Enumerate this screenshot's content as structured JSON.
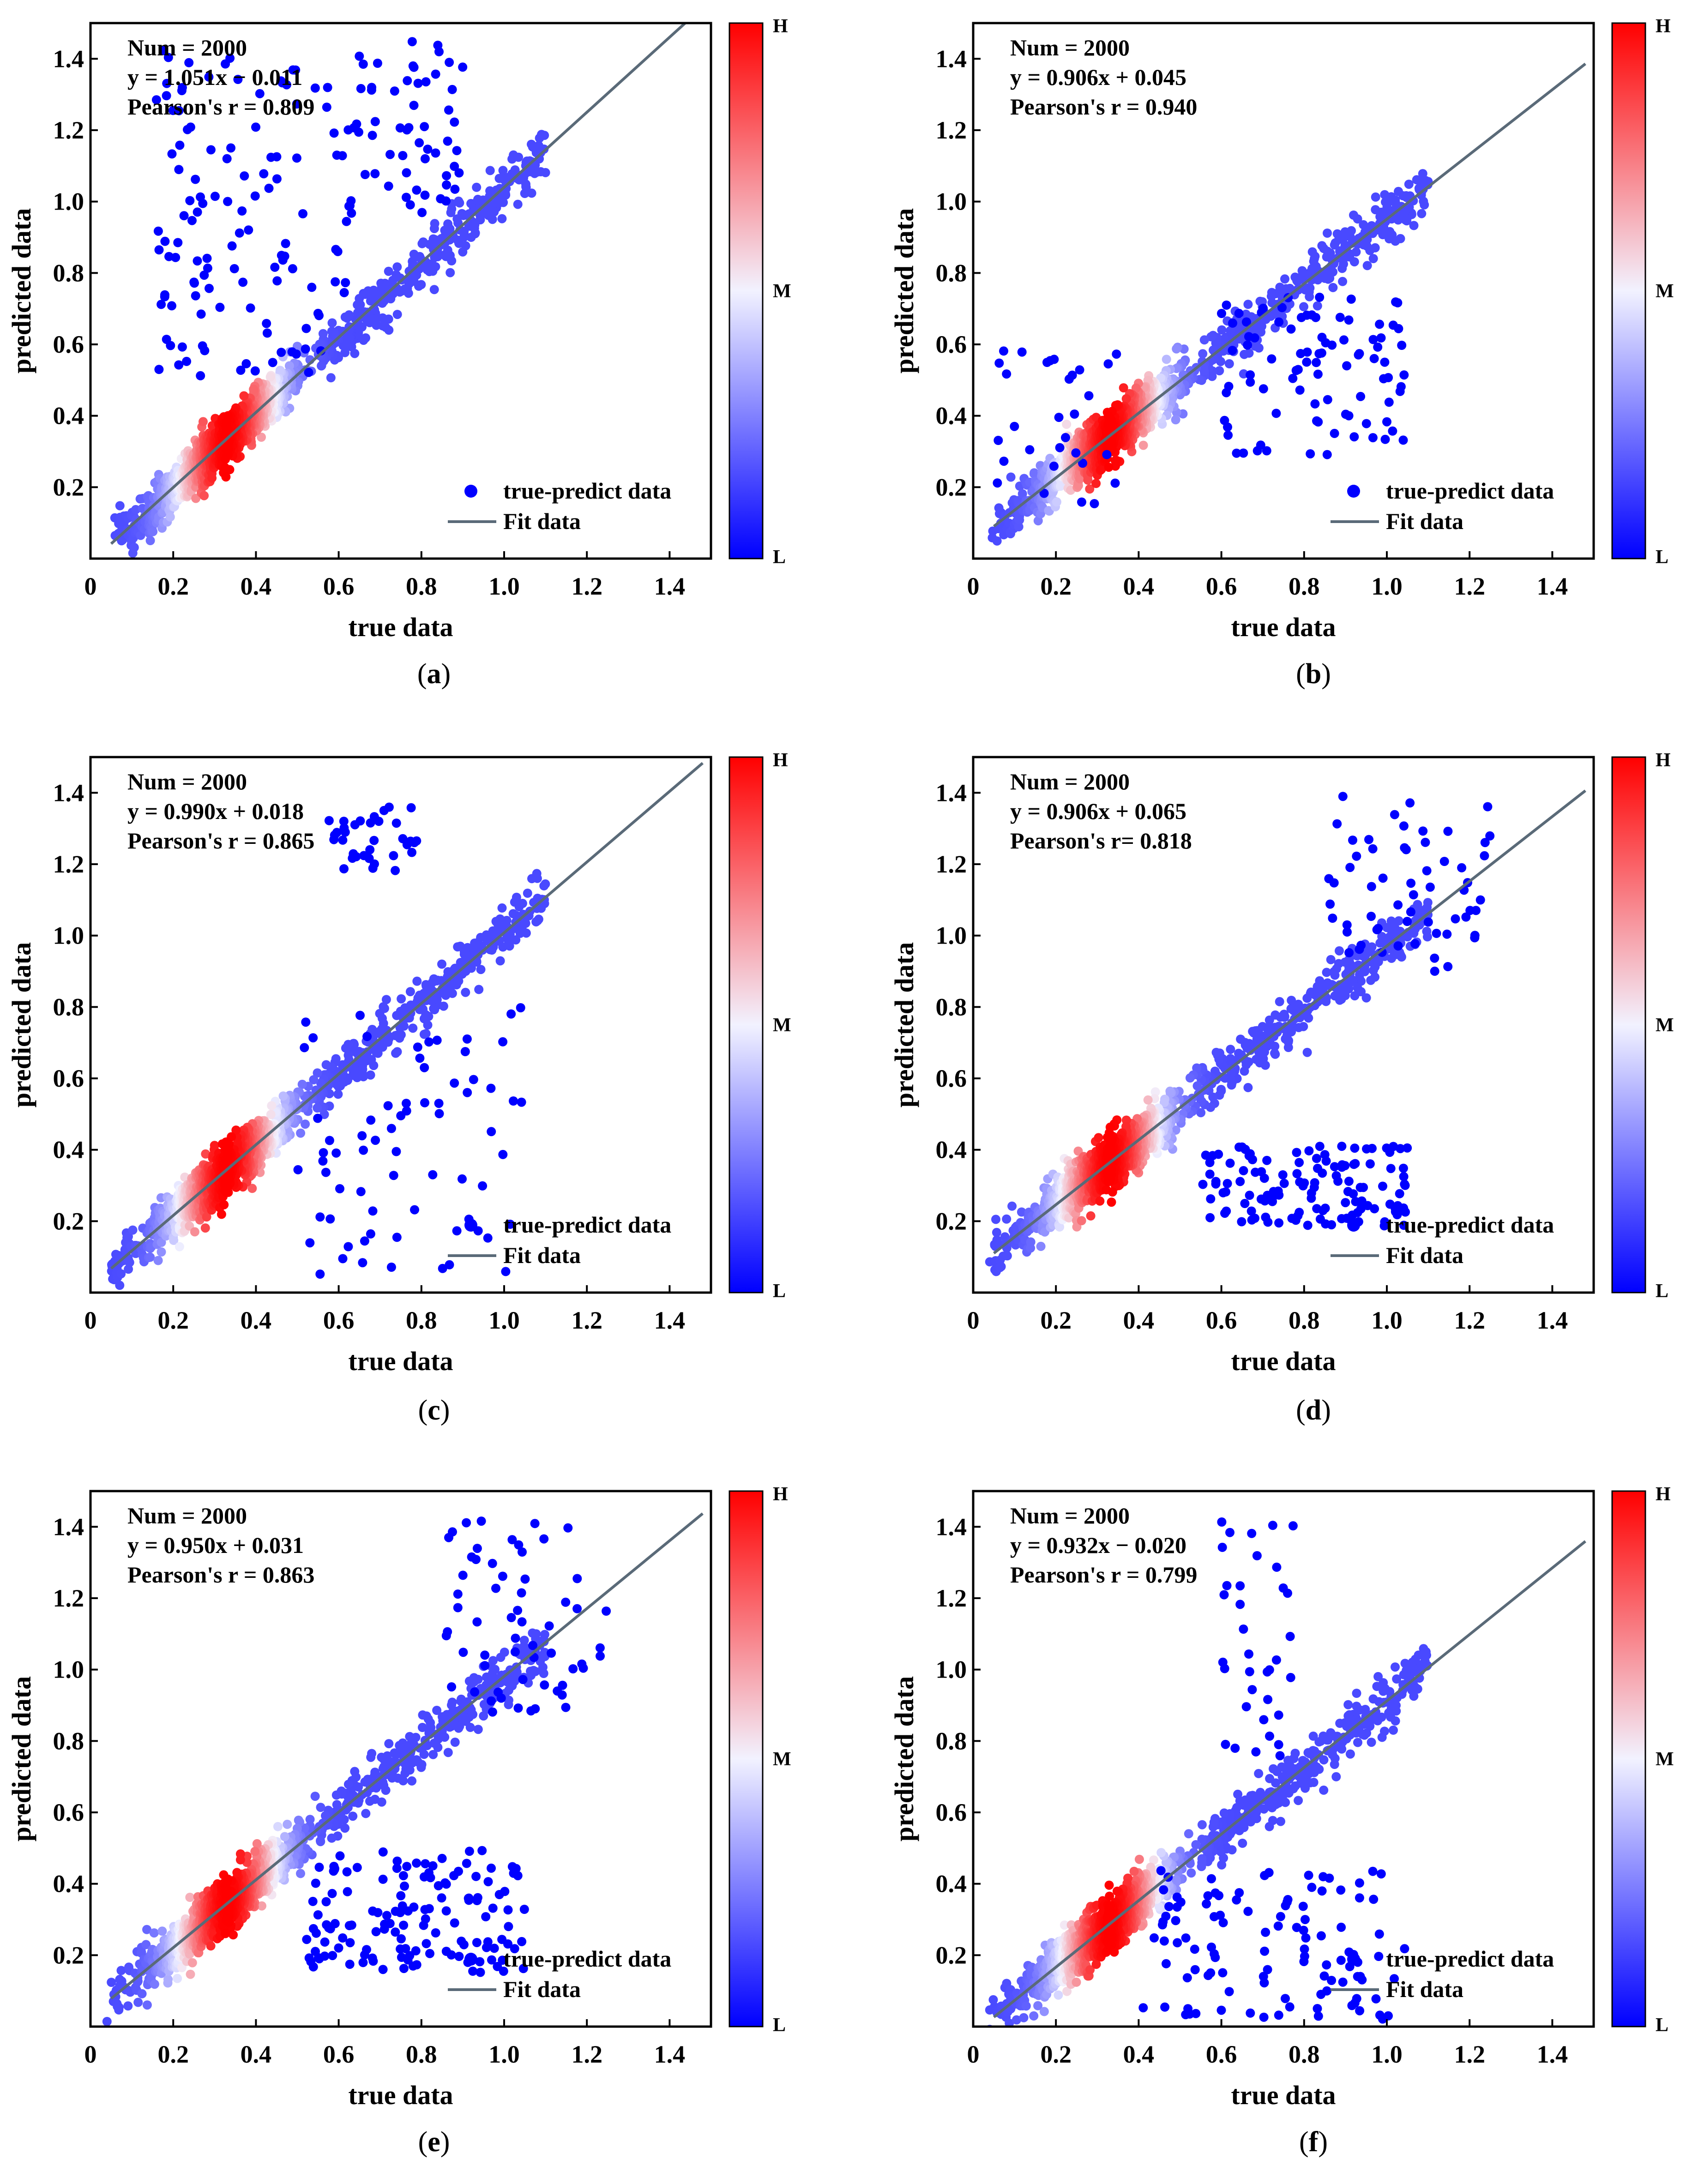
{
  "figure": {
    "colors": {
      "high": "#ff0000",
      "mid": "#f2f2ff",
      "low": "#0000ff",
      "fit": "#5a6a78"
    },
    "legend": {
      "points": "true-predict data",
      "fit": "Fit data"
    },
    "colorbar": {
      "high": "H",
      "mid": "M",
      "low": "L"
    }
  },
  "chart_data": [
    {
      "type": "scatter",
      "panel": "a",
      "caption_letter": "a",
      "xlabel": "true data",
      "ylabel": "predicted data",
      "xlim": [
        0,
        1.5
      ],
      "ylim": [
        0,
        1.5
      ],
      "xticks": [
        "0",
        "0.2",
        "0.4",
        "0.6",
        "0.8",
        "1.0",
        "1.2",
        "1.4"
      ],
      "yticks": [
        "0.2",
        "0.4",
        "0.6",
        "0.8",
        "1.0",
        "1.2",
        "1.4"
      ],
      "stats": {
        "num": "Num = 2000",
        "equation": "y = 1.051x − 0.011",
        "pearson": "Pearson's r = 0.809"
      },
      "fit": {
        "slope": 1.051,
        "intercept": -0.011,
        "x": [
          0.05,
          1.48
        ]
      },
      "num_points": 2000,
      "outlier_clusters": [
        {
          "x": [
            0.15,
            0.62
          ],
          "y": [
            0.5,
            1.45
          ],
          "n": 120
        },
        {
          "x": [
            0.62,
            0.9
          ],
          "y": [
            0.95,
            1.45
          ],
          "n": 60
        }
      ]
    },
    {
      "type": "scatter",
      "panel": "b",
      "caption_letter": "b",
      "xlabel": "true data",
      "ylabel": "predicted data",
      "xlim": [
        0,
        1.5
      ],
      "ylim": [
        0,
        1.5
      ],
      "xticks": [
        "0",
        "0.2",
        "0.4",
        "0.6",
        "0.8",
        "1.0",
        "1.2",
        "1.4"
      ],
      "yticks": [
        "0.2",
        "0.4",
        "0.6",
        "0.8",
        "1.0",
        "1.2",
        "1.4"
      ],
      "stats": {
        "num": "Num = 2000",
        "equation": "y = 0.906x + 0.045",
        "pearson": "Pearson's r = 0.940"
      },
      "fit": {
        "slope": 0.906,
        "intercept": 0.045,
        "x": [
          0.05,
          1.48
        ]
      },
      "num_points": 2000,
      "outlier_clusters": [
        {
          "x": [
            0.6,
            1.05
          ],
          "y": [
            0.28,
            0.75
          ],
          "n": 90
        },
        {
          "x": [
            0.05,
            0.35
          ],
          "y": [
            0.1,
            0.6
          ],
          "n": 30
        }
      ]
    },
    {
      "type": "scatter",
      "panel": "c",
      "caption_letter": "c",
      "xlabel": "true data",
      "ylabel": "predicted data",
      "xlim": [
        0,
        1.5
      ],
      "ylim": [
        0,
        1.5
      ],
      "xticks": [
        "0",
        "0.2",
        "0.4",
        "0.6",
        "0.8",
        "1.0",
        "1.2",
        "1.4"
      ],
      "yticks": [
        "0.2",
        "0.4",
        "0.6",
        "0.8",
        "1.0",
        "1.2",
        "1.4"
      ],
      "stats": {
        "num": "Num = 2000",
        "equation": "y = 0.990x + 0.018",
        "pearson": "Pearson's r = 0.865"
      },
      "fit": {
        "slope": 0.99,
        "intercept": 0.018,
        "x": [
          0.05,
          1.48
        ]
      },
      "num_points": 2000,
      "outlier_clusters": [
        {
          "x": [
            0.55,
            0.8
          ],
          "y": [
            1.18,
            1.36
          ],
          "n": 35
        },
        {
          "x": [
            0.5,
            1.05
          ],
          "y": [
            0.05,
            0.8
          ],
          "n": 70
        }
      ]
    },
    {
      "type": "scatter",
      "panel": "d",
      "caption_letter": "d",
      "xlabel": "true data",
      "ylabel": "predicted data",
      "xlim": [
        0,
        1.5
      ],
      "ylim": [
        0,
        1.5
      ],
      "xticks": [
        "0",
        "0.2",
        "0.4",
        "0.6",
        "0.8",
        "1.0",
        "1.2",
        "1.4"
      ],
      "yticks": [
        "0.2",
        "0.4",
        "0.6",
        "0.8",
        "1.0",
        "1.2",
        "1.4"
      ],
      "stats": {
        "num": "Num = 2000",
        "equation": "y = 0.906x + 0.065",
        "pearson": "Pearson's r= 0.818"
      },
      "fit": {
        "slope": 0.906,
        "intercept": 0.065,
        "x": [
          0.05,
          1.48
        ]
      },
      "num_points": 2000,
      "outlier_clusters": [
        {
          "x": [
            0.55,
            1.05
          ],
          "y": [
            0.18,
            0.42
          ],
          "n": 130
        },
        {
          "x": [
            0.85,
            1.25
          ],
          "y": [
            0.9,
            1.4
          ],
          "n": 60
        }
      ]
    },
    {
      "type": "scatter",
      "panel": "e",
      "caption_letter": "e",
      "xlabel": "true data",
      "ylabel": "predicted data",
      "xlim": [
        0,
        1.5
      ],
      "ylim": [
        0,
        1.5
      ],
      "xticks": [
        "0",
        "0.2",
        "0.4",
        "0.6",
        "0.8",
        "1.0",
        "1.2",
        "1.4"
      ],
      "yticks": [
        "0.2",
        "0.4",
        "0.6",
        "0.8",
        "1.0",
        "1.2",
        "1.4"
      ],
      "stats": {
        "num": "Num = 2000",
        "equation": "y = 0.950x + 0.031",
        "pearson": "Pearson's r = 0.863"
      },
      "fit": {
        "slope": 0.95,
        "intercept": 0.031,
        "x": [
          0.05,
          1.48
        ]
      },
      "num_points": 2000,
      "outlier_clusters": [
        {
          "x": [
            0.52,
            1.05
          ],
          "y": [
            0.15,
            0.5
          ],
          "n": 140
        },
        {
          "x": [
            0.85,
            1.25
          ],
          "y": [
            0.85,
            1.42
          ],
          "n": 60
        }
      ]
    },
    {
      "type": "scatter",
      "panel": "f",
      "caption_letter": "f",
      "xlabel": "true data",
      "ylabel": "predicted data",
      "xlim": [
        0,
        1.5
      ],
      "ylim": [
        0,
        1.5
      ],
      "xticks": [
        "0",
        "0.2",
        "0.4",
        "0.6",
        "0.8",
        "1.0",
        "1.2",
        "1.4"
      ],
      "yticks": [
        "0.2",
        "0.4",
        "0.6",
        "0.8",
        "1.0",
        "1.2",
        "1.4"
      ],
      "stats": {
        "num": "Num = 2000",
        "equation": "y = 0.932x − 0.020",
        "pearson": "Pearson's r = 0.799"
      },
      "fit": {
        "slope": 0.932,
        "intercept": -0.02,
        "x": [
          0.05,
          1.48
        ]
      },
      "num_points": 2000,
      "outlier_clusters": [
        {
          "x": [
            0.6,
            0.78
          ],
          "y": [
            0.75,
            1.43
          ],
          "n": 35
        },
        {
          "x": [
            0.4,
            1.05
          ],
          "y": [
            0.02,
            0.45
          ],
          "n": 110
        }
      ]
    }
  ]
}
